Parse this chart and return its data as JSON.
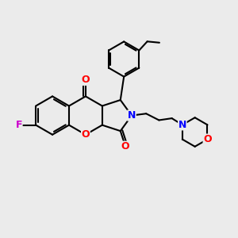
{
  "bg_color": "#ebebeb",
  "bond_color": "#000000",
  "N_color": "#0000ff",
  "O_color": "#ff0000",
  "F_color": "#cc00cc",
  "lw": 1.5,
  "lw2": 1.0,
  "fig_size": [
    3.0,
    3.0
  ],
  "dpi": 100,
  "xlim": [
    0,
    10
  ],
  "ylim": [
    0,
    10
  ]
}
